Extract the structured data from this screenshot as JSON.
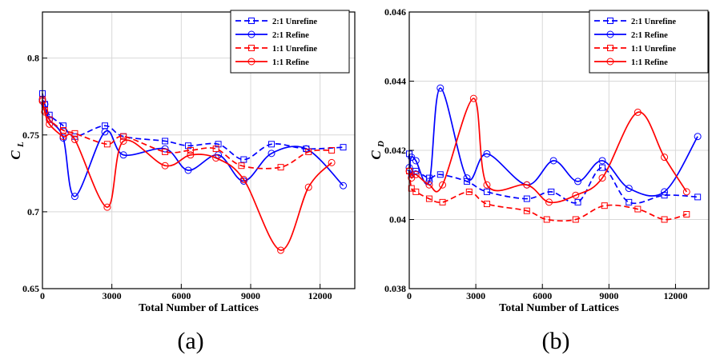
{
  "chart_data": [
    {
      "type": "line",
      "panel_label": "(a)",
      "xlabel": "Total Number of Lattices",
      "ylabel": "C",
      "ylabel_sub": "L",
      "xlim": [
        0,
        13500
      ],
      "ylim": [
        0.65,
        0.83
      ],
      "xticks": [
        0,
        3000,
        6000,
        9000,
        12000
      ],
      "xtick_labels": [
        "0",
        "3000",
        "6000",
        "9000",
        "12000"
      ],
      "yticks": [
        0.65,
        0.7,
        0.75,
        0.8
      ],
      "ytick_labels": [
        "0.65",
        "0.7",
        "0.75",
        "0.8"
      ],
      "grid": true,
      "legend_position": "top-right",
      "series": [
        {
          "name": "2:1 Unrefine",
          "color": "#0000ff",
          "dash": "dashed",
          "marker": "square",
          "x": [
            0,
            100,
            300,
            900,
            1400,
            2700,
            3500,
            5300,
            6300,
            7600,
            8700,
            9900,
            11400,
            13000
          ],
          "y": [
            0.777,
            0.77,
            0.763,
            0.756,
            0.749,
            0.756,
            0.749,
            0.746,
            0.743,
            0.744,
            0.734,
            0.744,
            0.741,
            0.742
          ]
        },
        {
          "name": "2:1 Refine",
          "color": "#0000ff",
          "dash": "solid",
          "marker": "circle",
          "x": [
            0,
            100,
            300,
            900,
            1400,
            2700,
            3500,
            5300,
            6300,
            7600,
            8700,
            9900,
            11400,
            13000
          ],
          "y": [
            0.773,
            0.77,
            0.76,
            0.748,
            0.71,
            0.752,
            0.737,
            0.741,
            0.727,
            0.737,
            0.72,
            0.738,
            0.741,
            0.717
          ]
        },
        {
          "name": "1:1 Unrefine",
          "color": "#ff0000",
          "dash": "dashed",
          "marker": "square",
          "x": [
            0,
            100,
            300,
            900,
            1400,
            2800,
            3500,
            5300,
            6400,
            7500,
            8600,
            10300,
            11500,
            12500
          ],
          "y": [
            0.773,
            0.766,
            0.76,
            0.753,
            0.751,
            0.744,
            0.749,
            0.739,
            0.74,
            0.741,
            0.73,
            0.729,
            0.739,
            0.74
          ]
        },
        {
          "name": "1:1 Refine",
          "color": "#ff0000",
          "dash": "solid",
          "marker": "circle",
          "x": [
            0,
            100,
            300,
            900,
            1400,
            2800,
            3500,
            5300,
            6400,
            7500,
            8700,
            10300,
            11500,
            12500
          ],
          "y": [
            0.772,
            0.765,
            0.757,
            0.749,
            0.747,
            0.703,
            0.746,
            0.73,
            0.737,
            0.735,
            0.721,
            0.675,
            0.716,
            0.732
          ]
        }
      ]
    },
    {
      "type": "line",
      "panel_label": "(b)",
      "xlabel": "Total Number of Lattices",
      "ylabel": "C",
      "ylabel_sub": "D",
      "xlim": [
        0,
        13500
      ],
      "ylim": [
        0.038,
        0.046
      ],
      "xticks": [
        0,
        3000,
        6000,
        9000,
        12000
      ],
      "xtick_labels": [
        "0",
        "3000",
        "6000",
        "9000",
        "12000"
      ],
      "yticks": [
        0.038,
        0.04,
        0.042,
        0.044,
        0.046
      ],
      "ytick_labels": [
        "0.038",
        "0.04",
        "0.042",
        "0.044",
        "0.046"
      ],
      "grid": true,
      "legend_position": "top-right",
      "series": [
        {
          "name": "2:1 Unrefine",
          "color": "#0000ff",
          "dash": "dashed",
          "marker": "square",
          "x": [
            0,
            100,
            300,
            900,
            1400,
            2600,
            3500,
            5300,
            6400,
            7600,
            8700,
            9900,
            11500,
            13000
          ],
          "y": [
            0.0419,
            0.0413,
            0.0414,
            0.0412,
            0.0413,
            0.0411,
            0.0408,
            0.0406,
            0.0408,
            0.0405,
            0.0415,
            0.0405,
            0.0407,
            0.04065
          ]
        },
        {
          "name": "2:1 Refine",
          "color": "#0000ff",
          "dash": "solid",
          "marker": "circle",
          "x": [
            0,
            100,
            300,
            900,
            1400,
            2600,
            3500,
            5300,
            6500,
            7600,
            8700,
            9900,
            11500,
            13000
          ],
          "y": [
            0.0415,
            0.0418,
            0.0417,
            0.0411,
            0.0438,
            0.0412,
            0.0419,
            0.041,
            0.0417,
            0.0411,
            0.0417,
            0.0409,
            0.0408,
            0.0424
          ]
        },
        {
          "name": "1:1 Unrefine",
          "color": "#ff0000",
          "dash": "dashed",
          "marker": "square",
          "x": [
            0,
            100,
            300,
            900,
            1500,
            2700,
            3500,
            5300,
            6200,
            7500,
            8800,
            10300,
            11500,
            12500
          ],
          "y": [
            0.0414,
            0.0409,
            0.0408,
            0.0406,
            0.0405,
            0.0408,
            0.04045,
            0.04025,
            0.04,
            0.04,
            0.0404,
            0.0403,
            0.04,
            0.04015
          ]
        },
        {
          "name": "1:1 Refine",
          "color": "#ff0000",
          "dash": "solid",
          "marker": "circle",
          "x": [
            0,
            100,
            300,
            900,
            1500,
            2900,
            3500,
            5300,
            6300,
            7500,
            8700,
            10300,
            11500,
            12500
          ],
          "y": [
            0.0414,
            0.0412,
            0.0413,
            0.041,
            0.041,
            0.0435,
            0.041,
            0.041,
            0.0405,
            0.0407,
            0.0412,
            0.0431,
            0.0418,
            0.0408
          ]
        }
      ]
    }
  ]
}
